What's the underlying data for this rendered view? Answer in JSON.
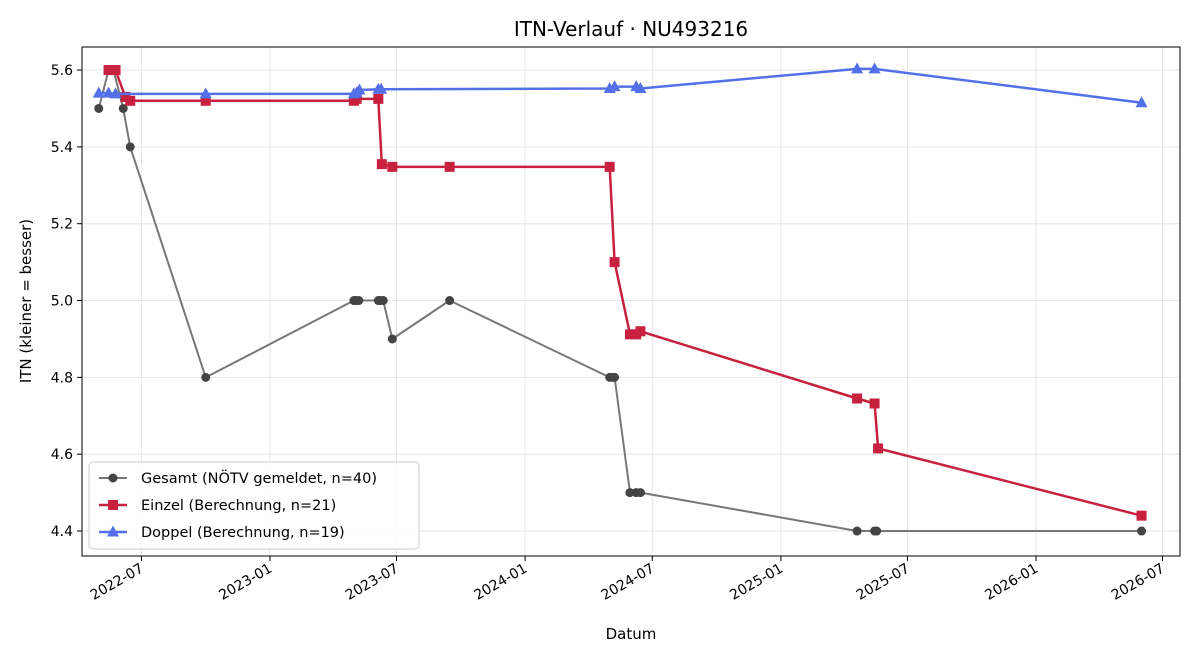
{
  "chart_data": {
    "type": "line",
    "title": "ITN-Verlauf · NU493216",
    "xlabel": "Datum",
    "ylabel": "ITN  (kleiner = besser)",
    "x_type": "date",
    "xlim": [
      "2022-04-07",
      "2026-07-26"
    ],
    "ylim": [
      4.335,
      5.66
    ],
    "x_ticks": [
      "2022-07",
      "2023-01",
      "2023-07",
      "2024-01",
      "2024-07",
      "2025-01",
      "2025-07",
      "2026-01",
      "2026-07"
    ],
    "y_ticks": [
      4.4,
      4.6,
      4.8,
      5.0,
      5.2,
      5.4,
      5.6
    ],
    "grid": true,
    "legend_position": "lower-left",
    "series": [
      {
        "name": "Gesamt (NÖTV gemeldet, n=40)",
        "color": "#777777",
        "marker_color": "#444444",
        "marker": "circle",
        "points": [
          [
            "2022-05-01",
            5.5
          ],
          [
            "2022-05-15",
            5.6
          ],
          [
            "2022-05-22",
            5.6
          ],
          [
            "2022-06-05",
            5.5
          ],
          [
            "2022-06-15",
            5.4
          ],
          [
            "2022-10-01",
            4.8
          ],
          [
            "2023-05-01",
            5.0
          ],
          [
            "2023-05-04",
            5.0
          ],
          [
            "2023-05-08",
            5.0
          ],
          [
            "2023-06-05",
            5.0
          ],
          [
            "2023-06-08",
            5.0
          ],
          [
            "2023-06-12",
            5.0
          ],
          [
            "2023-06-25",
            4.9
          ],
          [
            "2023-09-15",
            5.0
          ],
          [
            "2024-05-01",
            4.8
          ],
          [
            "2024-05-05",
            4.8
          ],
          [
            "2024-05-08",
            4.8
          ],
          [
            "2024-05-30",
            4.5
          ],
          [
            "2024-06-08",
            4.5
          ],
          [
            "2024-06-14",
            4.5
          ],
          [
            "2025-04-20",
            4.4
          ],
          [
            "2025-05-15",
            4.4
          ],
          [
            "2025-05-18",
            4.4
          ],
          [
            "2026-06-01",
            4.4
          ]
        ]
      },
      {
        "name": "Einzel (Berechnung, n=21)",
        "color": "#c8203f",
        "marker": "square",
        "points": [
          [
            "2022-05-15",
            5.6
          ],
          [
            "2022-05-25",
            5.6
          ],
          [
            "2022-06-08",
            5.53
          ],
          [
            "2022-06-15",
            5.52
          ],
          [
            "2022-10-01",
            5.52
          ],
          [
            "2023-05-01",
            5.52
          ],
          [
            "2023-05-05",
            5.525
          ],
          [
            "2023-06-05",
            5.525
          ],
          [
            "2023-06-10",
            5.355
          ],
          [
            "2023-06-25",
            5.348
          ],
          [
            "2023-09-15",
            5.348
          ],
          [
            "2024-05-01",
            5.348
          ],
          [
            "2024-05-08",
            5.1
          ],
          [
            "2024-05-30",
            4.912
          ],
          [
            "2024-06-08",
            4.912
          ],
          [
            "2024-06-14",
            4.92
          ],
          [
            "2025-04-20",
            4.745
          ],
          [
            "2025-05-15",
            4.732
          ],
          [
            "2025-05-20",
            4.615
          ],
          [
            "2026-06-01",
            4.44
          ]
        ]
      },
      {
        "name": "Doppel (Berechnung, n=19)",
        "color": "#5470e8",
        "marker": "triangle",
        "points": [
          [
            "2022-05-01",
            5.54
          ],
          [
            "2022-05-15",
            5.54
          ],
          [
            "2022-05-25",
            5.538
          ],
          [
            "2022-10-01",
            5.538
          ],
          [
            "2023-05-01",
            5.538
          ],
          [
            "2023-05-05",
            5.541
          ],
          [
            "2023-05-09",
            5.548
          ],
          [
            "2023-06-05",
            5.55
          ],
          [
            "2023-06-09",
            5.55
          ],
          [
            "2024-05-01",
            5.552
          ],
          [
            "2024-05-08",
            5.557
          ],
          [
            "2024-06-08",
            5.557
          ],
          [
            "2024-06-14",
            5.552
          ],
          [
            "2025-04-20",
            5.603
          ],
          [
            "2025-05-15",
            5.603
          ],
          [
            "2026-06-01",
            5.515
          ]
        ]
      }
    ]
  }
}
